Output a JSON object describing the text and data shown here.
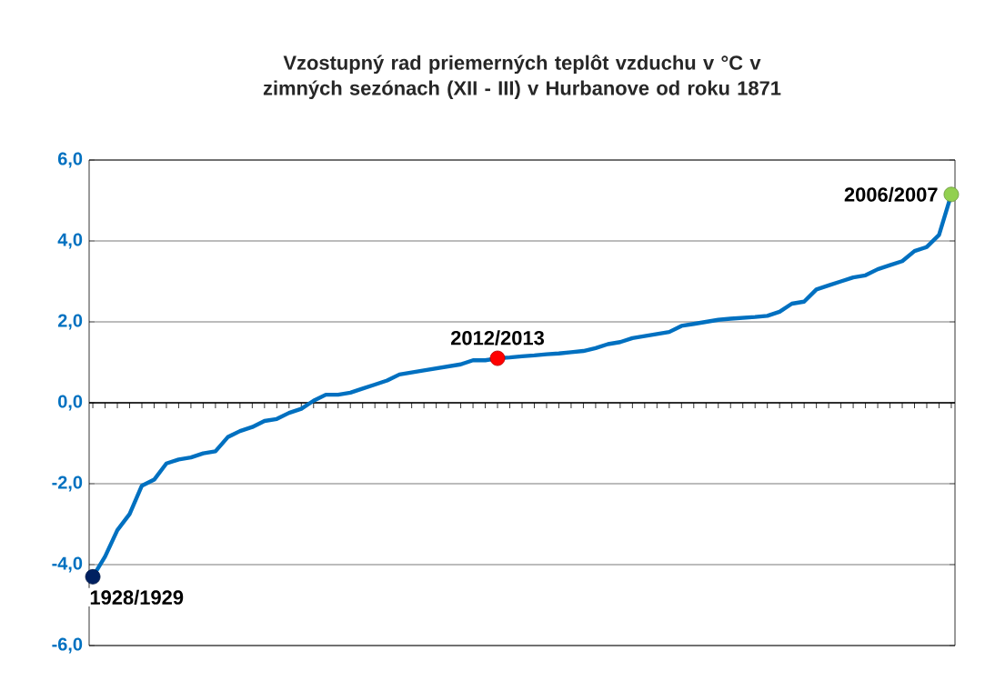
{
  "chart_data": {
    "type": "line",
    "title": "Vzostupný rad priemerných teplôt vzduchu v °C v zimných sezónach (XII - III) v Hurbanove od roku 1871",
    "categories": [
      null,
      null,
      null,
      null,
      null,
      null,
      null,
      null,
      null,
      null,
      null,
      null,
      null,
      null,
      null,
      null,
      null,
      null,
      null,
      null,
      null,
      null,
      null,
      null,
      null,
      null,
      null,
      null,
      null,
      null,
      null,
      null,
      null,
      null,
      null,
      null,
      null,
      null,
      null,
      null,
      null,
      null,
      null,
      null,
      null,
      null,
      null,
      null,
      null,
      null,
      null,
      null,
      null,
      null,
      null,
      null,
      null,
      null,
      null,
      null,
      null,
      null,
      null,
      null,
      null,
      null,
      null,
      null,
      null,
      null,
      null
    ],
    "ylim": [
      -6,
      6
    ],
    "yticks": [
      {
        "value": -6,
        "label": "-6,0"
      },
      {
        "value": -4,
        "label": "-4,0"
      },
      {
        "value": -2,
        "label": "-2,0"
      },
      {
        "value": 0,
        "label": "0,0"
      },
      {
        "value": 2,
        "label": "2,0"
      },
      {
        "value": 4,
        "label": "4,0"
      },
      {
        "value": 6,
        "label": "6,0"
      }
    ],
    "grid": "y",
    "series": [
      {
        "color": "#0070c0",
        "marker": "none",
        "values": [
          -4.3,
          -3.8,
          -3.15,
          -2.75,
          -2.05,
          -1.9,
          -1.5,
          -1.4,
          -1.35,
          -1.25,
          -1.2,
          -0.85,
          -0.7,
          -0.6,
          -0.45,
          -0.4,
          -0.25,
          -0.15,
          0.05,
          0.2,
          0.2,
          0.25,
          0.35,
          0.45,
          0.55,
          0.7,
          0.75,
          0.8,
          0.85,
          0.9,
          0.95,
          1.05,
          1.05,
          1.1,
          1.12,
          1.15,
          1.17,
          1.2,
          1.22,
          1.25,
          1.28,
          1.35,
          1.45,
          1.5,
          1.6,
          1.65,
          1.7,
          1.75,
          1.9,
          1.95,
          2.0,
          2.05,
          2.08,
          2.1,
          2.12,
          2.15,
          2.25,
          2.45,
          2.5,
          2.8,
          2.9,
          3.0,
          3.1,
          3.15,
          3.3,
          3.4,
          3.5,
          3.75,
          3.85,
          4.15,
          5.15
        ]
      },
      {
        "type": "scatter",
        "name": "1928/1929",
        "color": "#002060",
        "marker": "circle",
        "values": [
          -4.3,
          null,
          null,
          null,
          null,
          null,
          null,
          null,
          null,
          null,
          null,
          null,
          null,
          null,
          null,
          null,
          null,
          null,
          null,
          null,
          null,
          null,
          null,
          null,
          null,
          null,
          null,
          null,
          null,
          null,
          null,
          null,
          null,
          null,
          null,
          null,
          null,
          null,
          null,
          null,
          null,
          null,
          null,
          null,
          null,
          null,
          null,
          null,
          null,
          null,
          null,
          null,
          null,
          null,
          null,
          null,
          null,
          null,
          null,
          null,
          null,
          null,
          null,
          null,
          null,
          null,
          null,
          null,
          null,
          null,
          null
        ]
      },
      {
        "type": "scatter",
        "name": "2012/2013",
        "color": "#ff0000",
        "marker": "circle",
        "values": [
          null,
          null,
          null,
          null,
          null,
          null,
          null,
          null,
          null,
          null,
          null,
          null,
          null,
          null,
          null,
          null,
          null,
          null,
          null,
          null,
          null,
          null,
          null,
          null,
          null,
          null,
          null,
          null,
          null,
          null,
          null,
          null,
          null,
          1.1,
          null,
          null,
          null,
          null,
          null,
          null,
          null,
          null,
          null,
          null,
          null,
          null,
          null,
          null,
          null,
          null,
          null,
          null,
          null,
          null,
          null,
          null,
          null,
          null,
          null,
          null,
          null,
          null,
          null,
          null,
          null,
          null,
          null,
          null,
          null,
          null,
          null
        ]
      },
      {
        "type": "scatter",
        "name": "2006/2007",
        "color": "#92d050",
        "marker": "circle",
        "values": [
          null,
          null,
          null,
          null,
          null,
          null,
          null,
          null,
          null,
          null,
          null,
          null,
          null,
          null,
          null,
          null,
          null,
          null,
          null,
          null,
          null,
          null,
          null,
          null,
          null,
          null,
          null,
          null,
          null,
          null,
          null,
          null,
          null,
          null,
          null,
          null,
          null,
          null,
          null,
          null,
          null,
          null,
          null,
          null,
          null,
          null,
          null,
          null,
          null,
          null,
          null,
          null,
          null,
          null,
          null,
          null,
          null,
          null,
          null,
          null,
          null,
          null,
          null,
          null,
          null,
          null,
          null,
          null,
          null,
          null,
          5.15
        ]
      }
    ]
  }
}
